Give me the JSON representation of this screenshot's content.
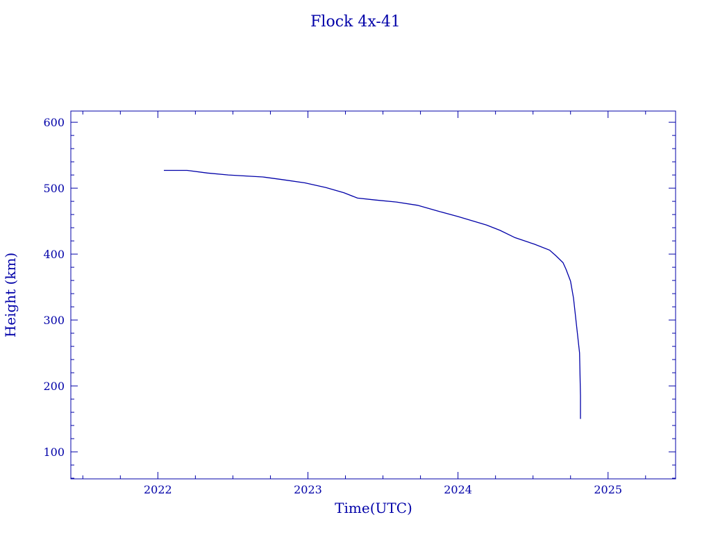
{
  "chart_data": {
    "type": "line",
    "title": "Flock 4x-41",
    "xlabel": "Time(UTC)",
    "ylabel": "Height (km)",
    "xlim": [
      2021.42,
      2025.45
    ],
    "ylim": [
      59,
      617
    ],
    "x_ticks": [
      2022,
      2023,
      2024,
      2025
    ],
    "x_tick_labels": [
      "2022",
      "2023",
      "2024",
      "2025"
    ],
    "y_ticks": [
      100,
      200,
      300,
      400,
      500,
      600
    ],
    "y_tick_labels": [
      "100",
      "200",
      "300",
      "400",
      "500",
      "600"
    ],
    "grid": false,
    "color": "#0000a8",
    "series": [
      {
        "x": [
          2022.04,
          2022.195,
          2022.33,
          2022.47,
          2022.7,
          2022.83,
          2022.98,
          2023.12,
          2023.24,
          2023.33,
          2023.45,
          2023.59,
          2023.73,
          2023.87,
          2024.0,
          2024.19,
          2024.28,
          2024.38,
          2024.51,
          2024.61,
          2024.65,
          2024.7,
          2024.72,
          2024.75,
          2024.77,
          2024.79,
          2024.81,
          2024.816,
          2024.816
        ],
        "y": [
          527,
          527,
          523,
          520,
          517,
          513,
          508,
          501,
          493,
          485,
          482,
          479,
          474,
          465,
          457,
          444,
          436,
          425,
          415,
          406,
          398,
          387,
          377,
          359,
          333,
          291,
          250,
          185,
          150
        ]
      }
    ]
  }
}
